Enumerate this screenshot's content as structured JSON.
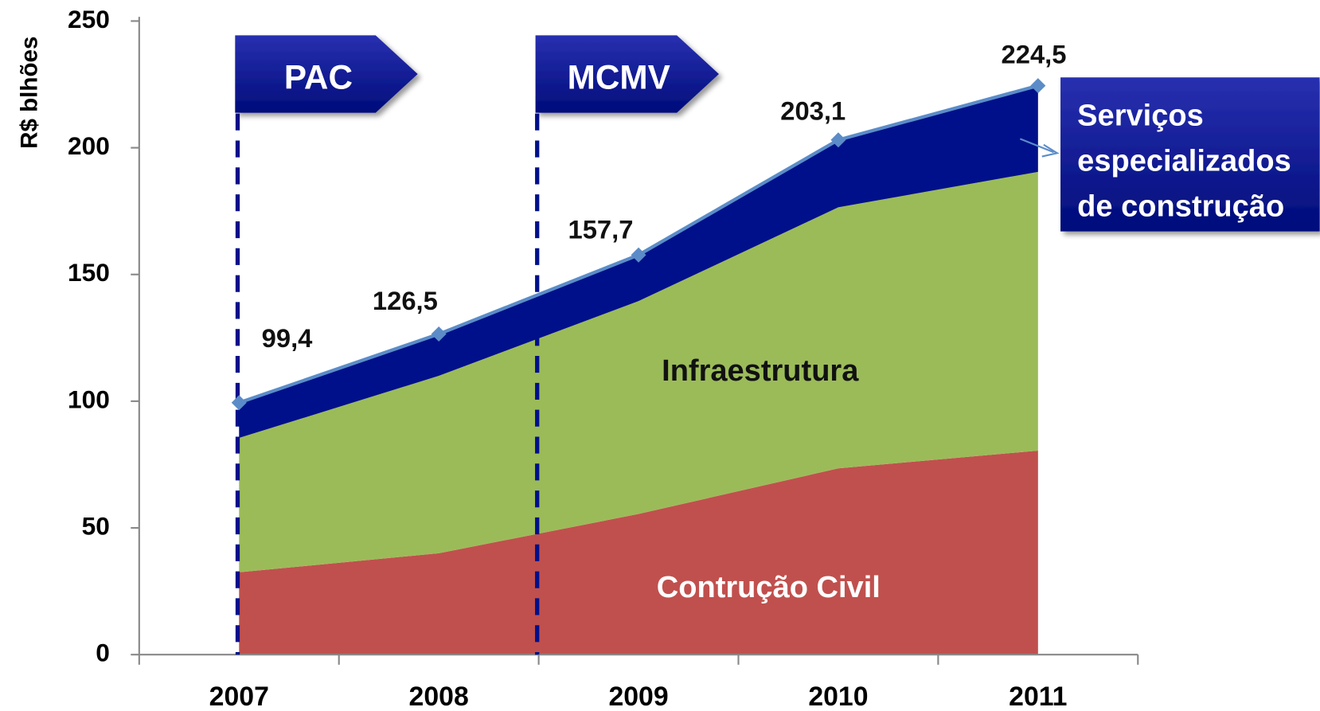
{
  "chart_data": {
    "type": "stacked_area",
    "ylabel": "R$ blhões",
    "categories": [
      "2007",
      "2008",
      "2009",
      "2010",
      "2011"
    ],
    "series": [
      {
        "name": "Contrução Civil",
        "color": "#c0504d",
        "values": [
          32.5,
          40,
          55.5,
          73.5,
          80.5
        ]
      },
      {
        "name": "Infraestrutura",
        "color": "#9bbb59",
        "values": [
          53,
          70,
          84,
          103,
          110
        ]
      },
      {
        "name": "Serviços especializados de construção",
        "color": "#00108a",
        "values": [
          13.9,
          16.5,
          18.2,
          26.6,
          34.0
        ]
      }
    ],
    "total_line": {
      "color": "#5b8cc8",
      "values": [
        99.4,
        126.5,
        157.7,
        203.1,
        224.5
      ],
      "value_labels": [
        "99,4",
        "126,5",
        "157,7",
        "203,1",
        "224,5"
      ]
    },
    "annotations": [
      {
        "text": "PAC"
      },
      {
        "text": "MCMV"
      }
    ],
    "ylim": [
      0,
      250
    ],
    "yticks": [
      0,
      50,
      100,
      150,
      200,
      250
    ],
    "grid": false
  }
}
